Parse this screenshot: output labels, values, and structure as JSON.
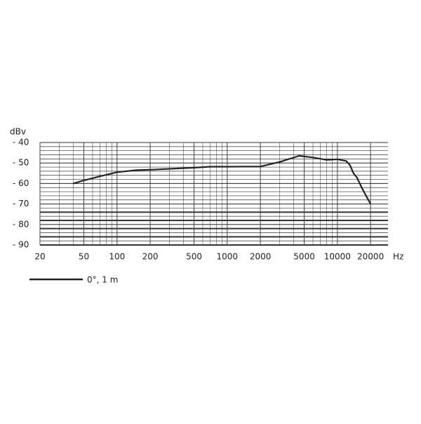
{
  "chart_data": {
    "type": "line",
    "y_label": "dBv",
    "x_label": "Hz",
    "x": [
      40,
      50,
      70,
      100,
      150,
      200,
      500,
      700,
      1000,
      2000,
      3000,
      4500,
      6000,
      8000,
      10000,
      12000,
      13000,
      14000,
      15000,
      17000,
      20000
    ],
    "series": [
      {
        "name": "0°, 1 m",
        "color": "#222222",
        "values": [
          -60,
          -58.5,
          -56.5,
          -54.5,
          -53.5,
          -53.3,
          -52.3,
          -51.8,
          -51.8,
          -51.7,
          -49.5,
          -46.5,
          -47.3,
          -48.5,
          -48.2,
          -49,
          -51,
          -55,
          -57,
          -63,
          -70
        ]
      }
    ],
    "xlim": [
      20,
      28800
    ],
    "ylim": [
      -90,
      -40
    ],
    "xlog": true,
    "grid": true,
    "xticks": [
      20,
      50,
      100,
      200,
      500,
      1000,
      2000,
      5000,
      10000,
      20000
    ],
    "yticks": [
      {
        "value": -40,
        "label": "- 40"
      },
      {
        "value": -50,
        "label": "- 50"
      },
      {
        "value": -60,
        "label": "- 60"
      },
      {
        "value": -70,
        "label": "- 70"
      },
      {
        "value": -80,
        "label": "- 80"
      },
      {
        "value": -90,
        "label": "- 90"
      }
    ]
  }
}
